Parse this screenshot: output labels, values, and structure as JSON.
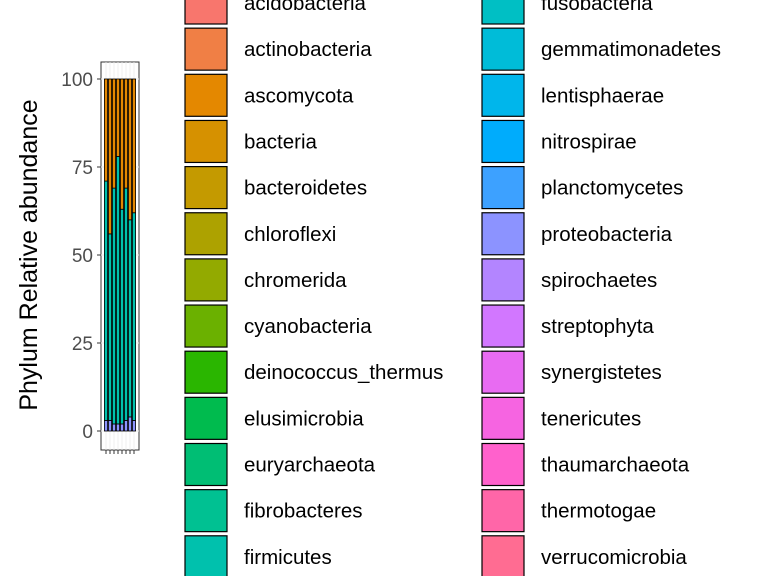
{
  "chart_data": {
    "type": "bar",
    "stacked": true,
    "ylabel": "Phylum Relative abundance",
    "yticks": [
      0,
      25,
      50,
      75,
      100
    ],
    "ylim": [
      0,
      100
    ],
    "grid": true,
    "legend_position": "right",
    "sample_count": 8,
    "segments": [
      {
        "phylum": "proteobacteria",
        "values": [
          3,
          3,
          2,
          2,
          2,
          3,
          4,
          3
        ]
      },
      {
        "phylum": "firmicutes",
        "values": [
          68,
          53,
          67,
          76,
          61,
          66,
          56,
          59
        ]
      },
      {
        "phylum": "ascomycota",
        "values": [
          29,
          44,
          31,
          22,
          37,
          31,
          40,
          38
        ]
      }
    ],
    "legend": [
      {
        "label": "acidobacteria",
        "color": "#F8766D"
      },
      {
        "label": "actinobacteria",
        "color": "#F07F45"
      },
      {
        "label": "ascomycota",
        "color": "#E48800"
      },
      {
        "label": "bacteria",
        "color": "#D69100"
      },
      {
        "label": "bacteroidetes",
        "color": "#C49A00"
      },
      {
        "label": "chloroflexi",
        "color": "#ADA200"
      },
      {
        "label": "chromerida",
        "color": "#93AA00"
      },
      {
        "label": "cyanobacteria",
        "color": "#6BB100"
      },
      {
        "label": "deinococcus_thermus",
        "color": "#2AB600"
      },
      {
        "label": "elusimicrobia",
        "color": "#00BB4E"
      },
      {
        "label": "euryarchaeota",
        "color": "#00BE74"
      },
      {
        "label": "fibrobacteres",
        "color": "#00C192"
      },
      {
        "label": "firmicutes",
        "color": "#00C1AD"
      },
      {
        "label": "fusobacteria",
        "color": "#00BFC4"
      },
      {
        "label": "gemmatimonadetes",
        "color": "#00BCD8"
      },
      {
        "label": "lentisphaerae",
        "color": "#00B6EB"
      },
      {
        "label": "nitrospirae",
        "color": "#00ACFC"
      },
      {
        "label": "planctomycetes",
        "color": "#3DA1FF"
      },
      {
        "label": "proteobacteria",
        "color": "#8C93FF"
      },
      {
        "label": "spirochaetes",
        "color": "#B385FF"
      },
      {
        "label": "streptophyta",
        "color": "#D277FF"
      },
      {
        "label": "synergistetes",
        "color": "#E86BF2"
      },
      {
        "label": "tenericutes",
        "color": "#F664E1"
      },
      {
        "label": "thaumarchaeota",
        "color": "#FF61CC"
      },
      {
        "label": "thermotogae",
        "color": "#FF66A8"
      },
      {
        "label": "verrucomicrobia",
        "color": "#FF6C92"
      }
    ]
  }
}
